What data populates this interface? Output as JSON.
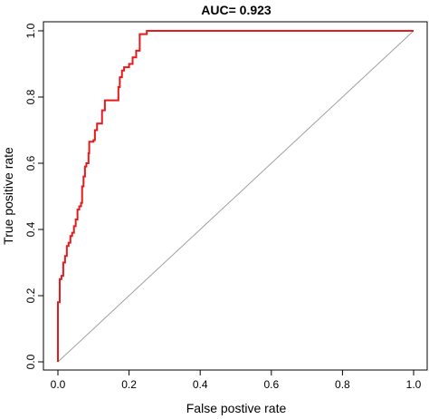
{
  "chart_data": {
    "type": "line",
    "title": "AUC= 0.923",
    "xlabel": "False postive rate",
    "ylabel": "True positive rate",
    "xlim": [
      0,
      1
    ],
    "ylim": [
      0,
      1
    ],
    "x_ticks": [
      "0.0",
      "0.2",
      "0.4",
      "0.6",
      "0.8",
      "1.0"
    ],
    "y_ticks": [
      "0.0",
      "0.2",
      "0.4",
      "0.6",
      "0.8",
      "1.0"
    ],
    "grid": false,
    "legend": "none",
    "series": [
      {
        "role": "roc",
        "color": "#e41a1c",
        "points": [
          [
            0.0,
            0.0
          ],
          [
            0.0,
            0.18
          ],
          [
            0.005,
            0.18
          ],
          [
            0.005,
            0.25
          ],
          [
            0.01,
            0.25
          ],
          [
            0.01,
            0.26
          ],
          [
            0.015,
            0.26
          ],
          [
            0.015,
            0.3
          ],
          [
            0.02,
            0.3
          ],
          [
            0.02,
            0.32
          ],
          [
            0.025,
            0.32
          ],
          [
            0.025,
            0.35
          ],
          [
            0.03,
            0.35
          ],
          [
            0.03,
            0.36
          ],
          [
            0.035,
            0.36
          ],
          [
            0.035,
            0.38
          ],
          [
            0.04,
            0.38
          ],
          [
            0.04,
            0.39
          ],
          [
            0.045,
            0.39
          ],
          [
            0.045,
            0.41
          ],
          [
            0.05,
            0.41
          ],
          [
            0.05,
            0.43
          ],
          [
            0.055,
            0.43
          ],
          [
            0.055,
            0.46
          ],
          [
            0.06,
            0.46
          ],
          [
            0.06,
            0.47
          ],
          [
            0.065,
            0.47
          ],
          [
            0.065,
            0.48
          ],
          [
            0.068,
            0.48
          ],
          [
            0.068,
            0.53
          ],
          [
            0.072,
            0.53
          ],
          [
            0.072,
            0.56
          ],
          [
            0.076,
            0.56
          ],
          [
            0.076,
            0.59
          ],
          [
            0.08,
            0.59
          ],
          [
            0.08,
            0.6
          ],
          [
            0.086,
            0.6
          ],
          [
            0.086,
            0.63
          ],
          [
            0.088,
            0.63
          ],
          [
            0.088,
            0.665
          ],
          [
            0.1,
            0.665
          ],
          [
            0.1,
            0.67
          ],
          [
            0.104,
            0.67
          ],
          [
            0.104,
            0.7
          ],
          [
            0.11,
            0.7
          ],
          [
            0.11,
            0.72
          ],
          [
            0.124,
            0.72
          ],
          [
            0.124,
            0.76
          ],
          [
            0.132,
            0.76
          ],
          [
            0.132,
            0.79
          ],
          [
            0.17,
            0.79
          ],
          [
            0.17,
            0.83
          ],
          [
            0.174,
            0.83
          ],
          [
            0.174,
            0.86
          ],
          [
            0.18,
            0.86
          ],
          [
            0.18,
            0.88
          ],
          [
            0.186,
            0.88
          ],
          [
            0.186,
            0.89
          ],
          [
            0.2,
            0.89
          ],
          [
            0.2,
            0.9
          ],
          [
            0.21,
            0.9
          ],
          [
            0.21,
            0.92
          ],
          [
            0.22,
            0.92
          ],
          [
            0.22,
            0.94
          ],
          [
            0.23,
            0.94
          ],
          [
            0.23,
            0.99
          ],
          [
            0.25,
            0.99
          ],
          [
            0.25,
            1.0
          ],
          [
            1.0,
            1.0
          ]
        ]
      },
      {
        "role": "reference-diagonal",
        "color": "#a0a0a0",
        "points": [
          [
            0,
            0
          ],
          [
            1,
            1
          ]
        ]
      }
    ]
  }
}
